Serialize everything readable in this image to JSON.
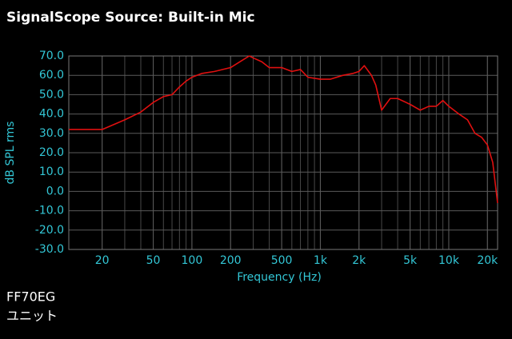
{
  "chart_data": {
    "type": "line",
    "title": "SignalScope Source:  Built-in Mic",
    "x_label": "Frequency (Hz)",
    "y_label": "dB SPL rms",
    "annotations": [
      "FF70EG",
      "ユニット"
    ],
    "x_scale": "log",
    "grid": true,
    "x": [
      11,
      20,
      30,
      40,
      50,
      60,
      70,
      80,
      90,
      100,
      120,
      150,
      200,
      250,
      280,
      300,
      350,
      400,
      500,
      600,
      700,
      800,
      1000,
      1200,
      1500,
      1800,
      2000,
      2200,
      2500,
      2700,
      3000,
      3500,
      4000,
      5000,
      6000,
      7000,
      8000,
      9000,
      10000,
      12000,
      14000,
      16000,
      18000,
      20000,
      22000,
      24000
    ],
    "series": [
      {
        "name": "Built-in Mic",
        "color": "#e01010",
        "values": [
          32,
          32,
          37,
          41,
          46,
          49,
          50,
          54,
          57,
          59,
          61,
          62,
          64,
          68,
          70,
          69,
          67,
          64,
          64,
          62,
          63,
          59,
          58,
          58,
          60,
          61,
          62,
          65,
          60,
          55,
          42,
          48,
          48,
          45,
          42,
          44,
          44,
          47,
          44,
          40,
          37,
          30,
          28,
          24,
          15,
          -6
        ]
      }
    ],
    "xlim": [
      11,
      24000
    ],
    "ylim": [
      -30,
      70
    ],
    "xticks": [
      20,
      50,
      100,
      200,
      500,
      {
        "value": 1000,
        "label": "1k"
      },
      {
        "value": 2000,
        "label": "2k"
      },
      {
        "value": 5000,
        "label": "5k"
      },
      {
        "value": 10000,
        "label": "10k"
      },
      {
        "value": 20000,
        "label": "20k"
      }
    ],
    "yticks": [
      {
        "value": 70,
        "label": "70.0"
      },
      {
        "value": 60,
        "label": "60.0"
      },
      {
        "value": 50,
        "label": "50.0"
      },
      {
        "value": 40,
        "label": "40.0"
      },
      {
        "value": 30,
        "label": "30.0"
      },
      {
        "value": 20,
        "label": "20.0"
      },
      {
        "value": 10,
        "label": "10.0"
      },
      {
        "value": 0,
        "label": "0.0"
      },
      {
        "value": -10,
        "label": "-10.0"
      },
      {
        "value": -20,
        "label": "-20.0"
      },
      {
        "value": -30,
        "label": "-30.0"
      }
    ]
  }
}
